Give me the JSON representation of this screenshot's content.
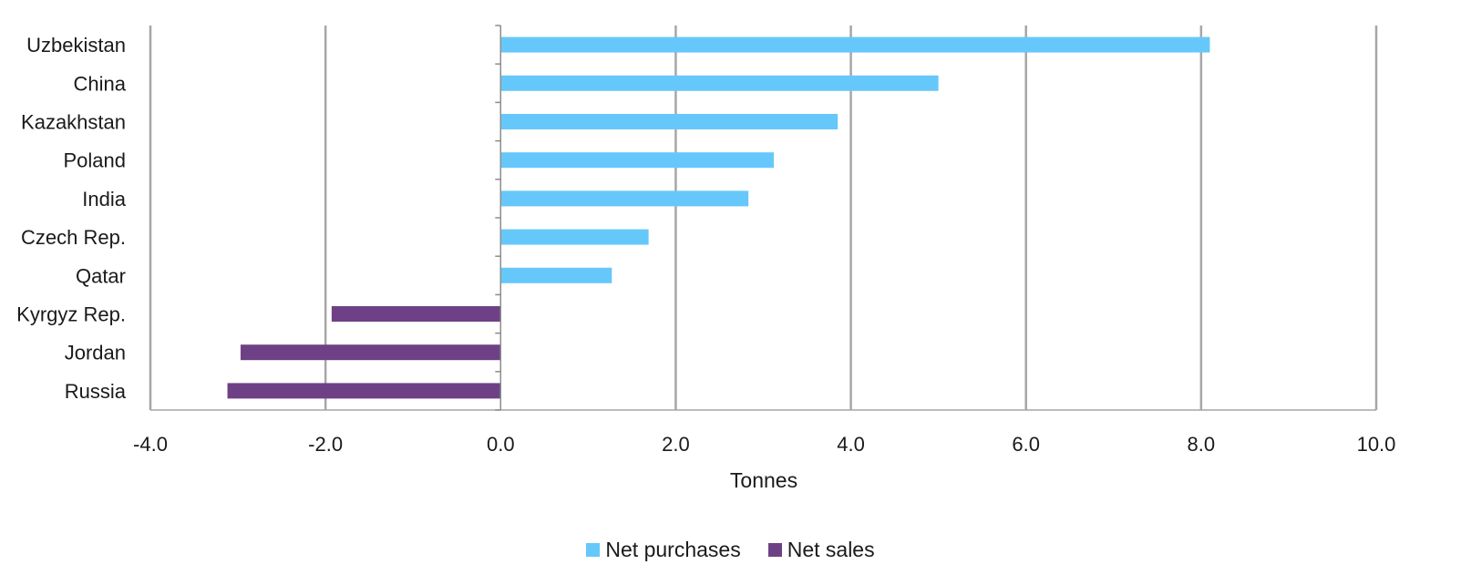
{
  "chart_data": {
    "type": "bar",
    "orientation": "horizontal",
    "categories": [
      "Uzbekistan",
      "China",
      "Kazakhstan",
      "Poland",
      "India",
      "Czech Rep.",
      "Qatar",
      "Kyrgyz Rep.",
      "Jordan",
      "Russia"
    ],
    "values": [
      8.1,
      5.0,
      3.85,
      3.12,
      2.83,
      1.69,
      1.27,
      -1.93,
      -2.97,
      -3.12
    ],
    "series": [
      {
        "name": "Net purchases",
        "color": "#66C8FA"
      },
      {
        "name": "Net sales",
        "color": "#6E4186"
      }
    ],
    "xlabel": "Tonnes",
    "xlim": [
      -4.0,
      10.0
    ],
    "xticks": [
      -4.0,
      -2.0,
      0.0,
      2.0,
      4.0,
      6.0,
      8.0,
      10.0
    ],
    "xtick_labels": [
      "-4.0",
      "-2.0",
      "0.0",
      "2.0",
      "4.0",
      "6.0",
      "8.0",
      "10.0"
    ],
    "grid": "vertical",
    "legend_position": "bottom"
  }
}
